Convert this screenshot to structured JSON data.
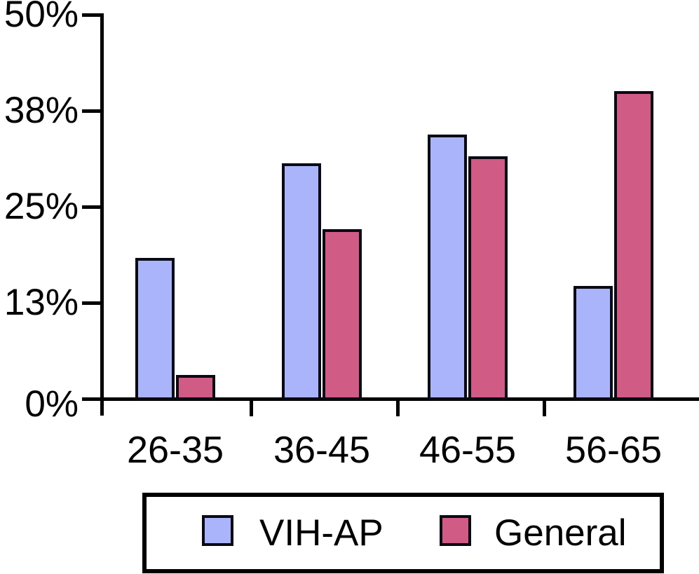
{
  "chart_data": {
    "type": "bar",
    "title": "",
    "categories": [
      "26-35",
      "36-45",
      "46-55",
      "56-65"
    ],
    "series": [
      {
        "name": "VIH-AP",
        "color": "#aab4fa",
        "values": [
          18.3,
          30.7,
          34.4,
          14.7
        ]
      },
      {
        "name": "General",
        "color": "#d05c86",
        "values": [
          3.1,
          22.1,
          31.6,
          40.1
        ]
      }
    ],
    "xlabel": "",
    "ylabel": "",
    "ylim": [
      0,
      50
    ],
    "ytick_values": [
      0,
      12.5,
      25,
      37.5,
      50
    ],
    "ytick_labels": [
      "0%",
      "13%",
      "25%",
      "38%",
      "50%"
    ],
    "grid": false,
    "legend_position": "bottom",
    "axis_color": "#000000",
    "bar_border_color": "#0a0a14",
    "background_color": "#ffffff"
  }
}
